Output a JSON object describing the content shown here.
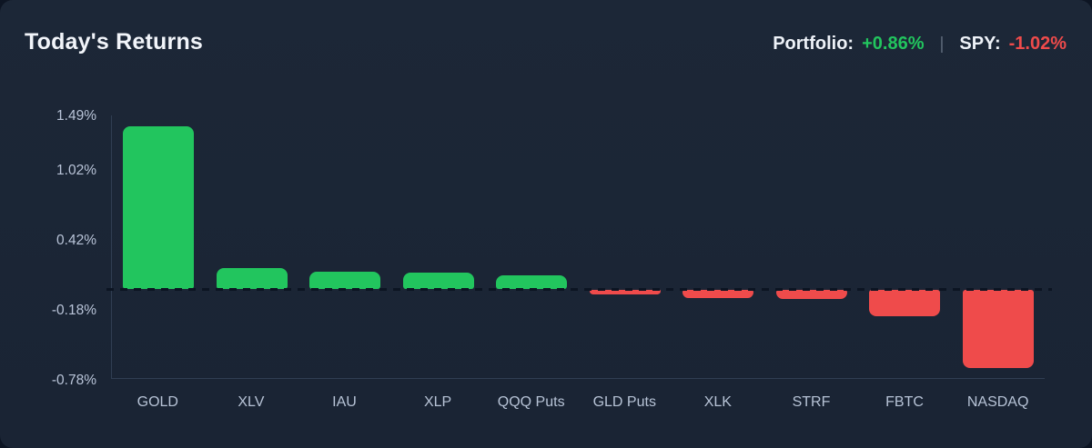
{
  "header": {
    "title": "Today's Returns",
    "portfolio_label": "Portfolio:",
    "portfolio_value": "+0.86%",
    "divider": "|",
    "spy_label": "SPY:",
    "spy_value": "-1.02%"
  },
  "colors": {
    "positive": "#22c55e",
    "negative": "#ef4b4b",
    "background": "#1b2535",
    "axis_line": "#303e53",
    "tick_text": "#b9c4d8"
  },
  "chart_data": {
    "type": "bar",
    "title": "Today's Returns",
    "categories": [
      "GOLD",
      "XLV",
      "IAU",
      "XLP",
      "QQQ Puts",
      "GLD Puts",
      "XLK",
      "STRF",
      "FBTC",
      "NASDAQ"
    ],
    "values": [
      1.4,
      0.18,
      0.15,
      0.14,
      0.12,
      -0.04,
      -0.07,
      -0.08,
      -0.23,
      -0.67
    ],
    "unit": "%",
    "xlabel": "",
    "ylabel": "",
    "ylim": [
      -0.78,
      1.49
    ],
    "yticks": [
      1.49,
      1.02,
      0.42,
      -0.18,
      -0.78
    ],
    "ytick_labels": [
      "1.49%",
      "1.02%",
      "0.42%",
      "-0.18%",
      "-0.78%"
    ],
    "zero_line": "dashed",
    "grid": false,
    "legend": false,
    "bar_color_rule": "green for positive values, red for negative values"
  }
}
